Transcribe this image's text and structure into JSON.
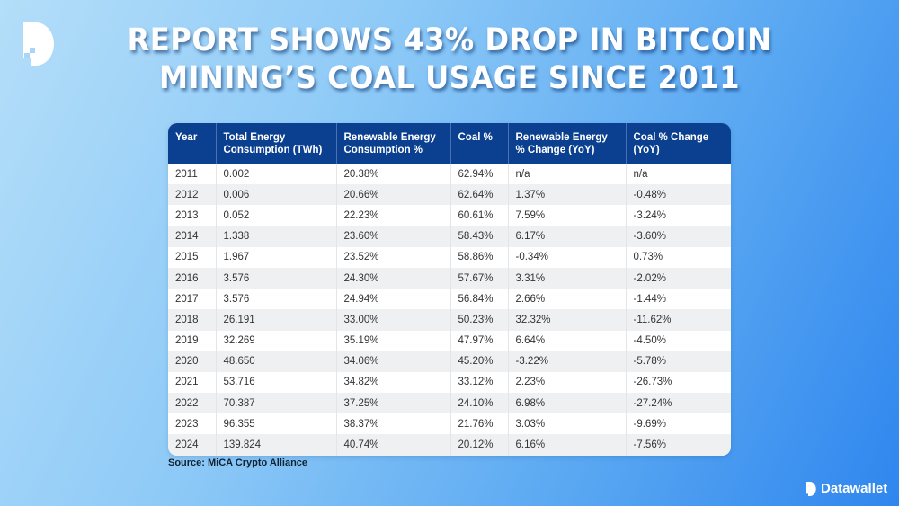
{
  "title": {
    "line1": "REPORT SHOWS 43% DROP IN BITCOIN",
    "line2": "MINING’S COAL USAGE SINCE 2011"
  },
  "table": {
    "headers": [
      "Year",
      "Total Energy Consumption (TWh)",
      "Renewable Energy Consumption %",
      "Coal %",
      "Renewable Energy % Change (YoY)",
      "Coal % Change (YoY)"
    ],
    "rows": [
      [
        "2011",
        "0.002",
        "20.38%",
        "62.94%",
        "n/a",
        "n/a"
      ],
      [
        "2012",
        "0.006",
        "20.66%",
        "62.64%",
        "1.37%",
        "-0.48%"
      ],
      [
        "2013",
        "0.052",
        "22.23%",
        "60.61%",
        "7.59%",
        "-3.24%"
      ],
      [
        "2014",
        "1.338",
        "23.60%",
        "58.43%",
        "6.17%",
        "-3.60%"
      ],
      [
        "2015",
        "1.967",
        "23.52%",
        "58.86%",
        "-0.34%",
        "0.73%"
      ],
      [
        "2016",
        "3.576",
        "24.30%",
        "57.67%",
        "3.31%",
        "-2.02%"
      ],
      [
        "2017",
        "3.576",
        "24.94%",
        "56.84%",
        "2.66%",
        "-1.44%"
      ],
      [
        "2018",
        "26.191",
        "33.00%",
        "50.23%",
        "32.32%",
        "-11.62%"
      ],
      [
        "2019",
        "32.269",
        "35.19%",
        "47.97%",
        "6.64%",
        "-4.50%"
      ],
      [
        "2020",
        "48.650",
        "34.06%",
        "45.20%",
        "-3.22%",
        "-5.78%"
      ],
      [
        "2021",
        "53.716",
        "34.82%",
        "33.12%",
        "2.23%",
        "-26.73%"
      ],
      [
        "2022",
        "70.387",
        "37.25%",
        "24.10%",
        "6.98%",
        "-27.24%"
      ],
      [
        "2023",
        "96.355",
        "38.37%",
        "21.76%",
        "3.03%",
        "-9.69%"
      ],
      [
        "2024",
        "139.824",
        "40.74%",
        "20.12%",
        "6.16%",
        "-7.56%"
      ]
    ]
  },
  "source": "Source: MiCA Crypto Alliance",
  "brand": {
    "name": "Datawallet",
    "logo_icon": "datawallet-d-logo"
  },
  "colors": {
    "header": "#0b3f8f",
    "accent": "#2f86ee"
  }
}
